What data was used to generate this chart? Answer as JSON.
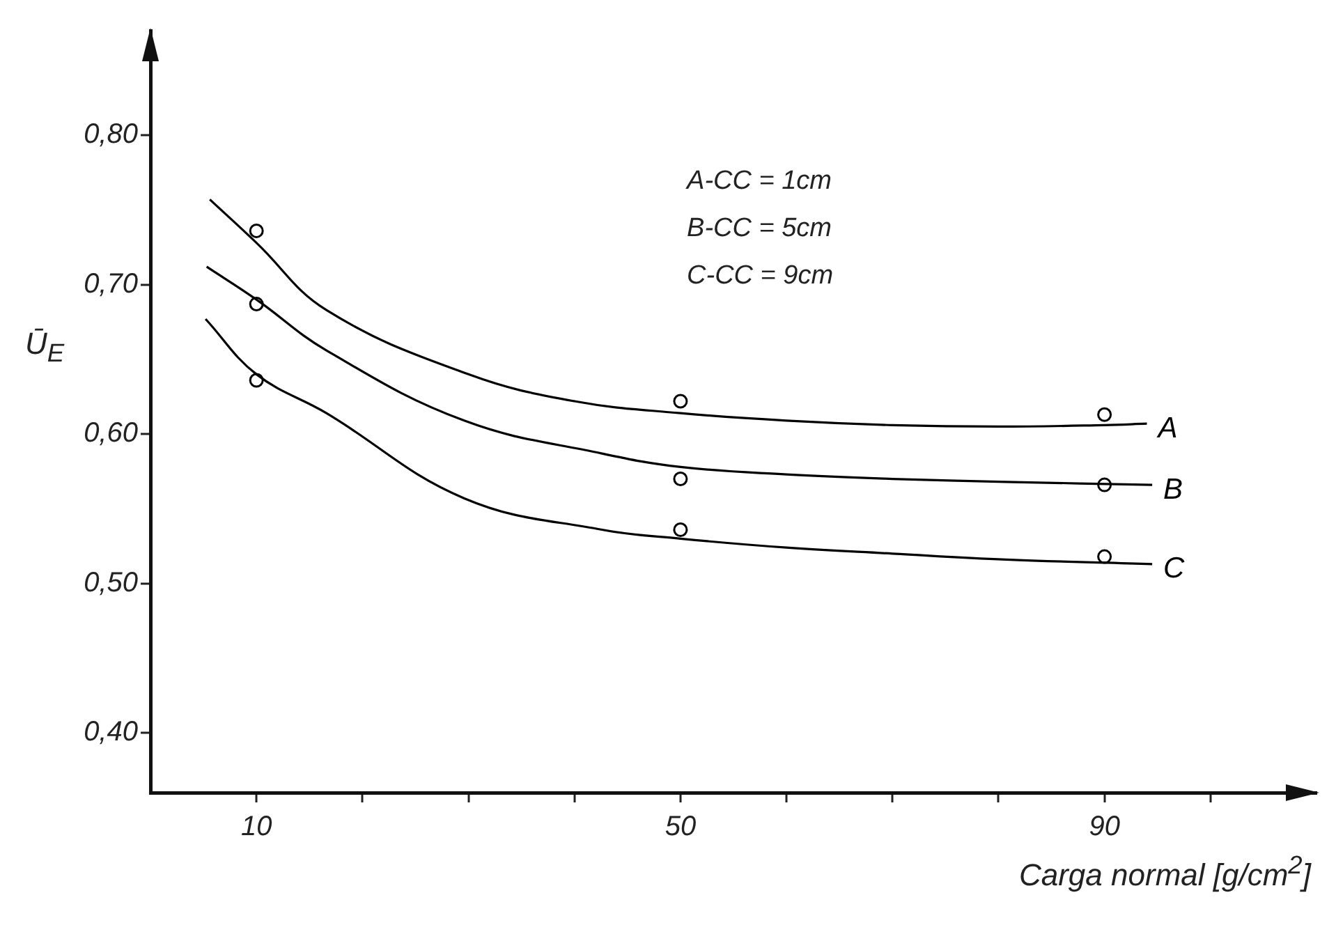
{
  "chart_data": {
    "type": "line",
    "xlabel": "Carga normal [g/cm$^{2}$]",
    "ylabel": "Ū$_{E}$",
    "xlim": [
      0,
      110
    ],
    "xticks": [
      10,
      {
        "value": 20,
        "label": null
      },
      {
        "value": 30,
        "label": null
      },
      {
        "value": 40,
        "label": null
      },
      50,
      {
        "value": 60,
        "label": null
      },
      {
        "value": 70,
        "label": null
      },
      {
        "value": 80,
        "label": null
      },
      90,
      {
        "value": 100,
        "label": null
      }
    ],
    "ylim": [
      0.36,
      0.87
    ],
    "yticks": [
      {
        "value": 0.4,
        "label": "0,40"
      },
      {
        "value": 0.5,
        "label": "0,50"
      },
      {
        "value": 0.6,
        "label": "0,60"
      },
      {
        "value": 0.7,
        "label": "0,70"
      },
      {
        "value": 0.8,
        "label": "0,80"
      }
    ],
    "grid": false,
    "legend": false,
    "line_style": "solid",
    "annotations": [
      "A-CC = 1cm",
      "B-CC = 5cm",
      "C-CC = 9cm"
    ],
    "series": [
      {
        "name": "A",
        "type": "line",
        "marker": "none",
        "color": "#000000",
        "x": [
          5.6,
          10,
          16.6,
          30,
          40,
          50,
          60,
          70,
          80,
          90,
          94
        ],
        "values": [
          0.757,
          0.728,
          0.683,
          0.64,
          0.622,
          0.614,
          0.609,
          0.606,
          0.605,
          0.606,
          0.607
        ]
      },
      {
        "name": "B",
        "type": "line",
        "marker": "none",
        "color": "#000000",
        "x": [
          5.3,
          10,
          16.6,
          29.6,
          42.6,
          50,
          60,
          70,
          80.7,
          94.5
        ],
        "values": [
          0.712,
          0.69,
          0.656,
          0.609,
          0.587,
          0.578,
          0.573,
          0.57,
          0.568,
          0.566
        ]
      },
      {
        "name": "C",
        "type": "line",
        "marker": "none",
        "color": "#000000",
        "x": [
          5.2,
          10,
          16.6,
          29.6,
          42.6,
          50,
          60,
          70,
          80.7,
          94.5
        ],
        "values": [
          0.677,
          0.64,
          0.614,
          0.557,
          0.536,
          0.53,
          0.524,
          0.52,
          0.516,
          0.513
        ]
      },
      {
        "type": "scatter",
        "marker": "circle",
        "color": "#000000",
        "x": [
          10,
          50,
          90
        ],
        "values": [
          0.736,
          0.622,
          0.613
        ]
      },
      {
        "type": "scatter",
        "marker": "circle",
        "color": "#000000",
        "x": [
          10,
          50,
          90
        ],
        "values": [
          0.687,
          0.57,
          0.566
        ]
      },
      {
        "type": "scatter",
        "marker": "circle",
        "color": "#000000",
        "x": [
          10,
          50,
          90
        ],
        "values": [
          0.636,
          0.536,
          0.518
        ]
      }
    ]
  }
}
